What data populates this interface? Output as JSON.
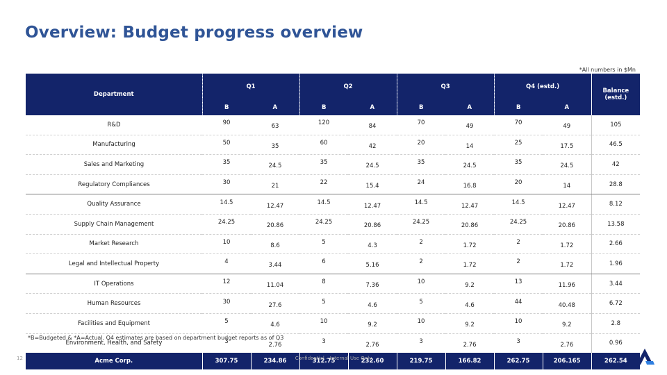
{
  "title": "Overview: Budget progress overview",
  "units_note": "*All numbers in $Mn",
  "table": {
    "dept_header": "Department",
    "quarters": [
      "Q1",
      "Q2",
      "Q3",
      "Q4 (estd.)"
    ],
    "balance_header_line1": "Balance",
    "balance_header_line2": "(estd.)",
    "sub_b": "B",
    "sub_a": "A",
    "rows": [
      {
        "dept": "R&D",
        "v": [
          "90",
          "63",
          "120",
          "84",
          "70",
          "49",
          "70",
          "49",
          "105"
        ]
      },
      {
        "dept": "Manufacturing",
        "v": [
          "50",
          "35",
          "60",
          "42",
          "20",
          "14",
          "25",
          "17.5",
          "46.5"
        ]
      },
      {
        "dept": "Sales and Marketing",
        "v": [
          "35",
          "24.5",
          "35",
          "24.5",
          "35",
          "24.5",
          "35",
          "24.5",
          "42"
        ]
      },
      {
        "dept": "Regulatory Compliances",
        "v": [
          "30",
          "21",
          "22",
          "15.4",
          "24",
          "16.8",
          "20",
          "14",
          "28.8"
        ]
      },
      {
        "dept": "Quality Assurance",
        "v": [
          "14.5",
          "12.47",
          "14.5",
          "12.47",
          "14.5",
          "12.47",
          "14.5",
          "12.47",
          "8.12"
        ]
      },
      {
        "dept": "Supply Chain Management",
        "v": [
          "24.25",
          "20.86",
          "24.25",
          "20.86",
          "24.25",
          "20.86",
          "24.25",
          "20.86",
          "13.58"
        ]
      },
      {
        "dept": "Market Research",
        "v": [
          "10",
          "8.6",
          "5",
          "4.3",
          "2",
          "1.72",
          "2",
          "1.72",
          "2.66"
        ]
      },
      {
        "dept": "Legal and Intellectual Property",
        "v": [
          "4",
          "3.44",
          "6",
          "5.16",
          "2",
          "1.72",
          "2",
          "1.72",
          "1.96"
        ]
      },
      {
        "dept": "IT Operations",
        "v": [
          "12",
          "11.04",
          "8",
          "7.36",
          "10",
          "9.2",
          "13",
          "11.96",
          "3.44"
        ]
      },
      {
        "dept": "Human Resources",
        "v": [
          "30",
          "27.6",
          "5",
          "4.6",
          "5",
          "4.6",
          "44",
          "40.48",
          "6.72"
        ]
      },
      {
        "dept": "Facilities and Equipment",
        "v": [
          "5",
          "4.6",
          "10",
          "9.2",
          "10",
          "9.2",
          "10",
          "9.2",
          "2.8"
        ]
      },
      {
        "dept": "Environment, Health, and Safety",
        "v": [
          "3",
          "2.76",
          "3",
          "2.76",
          "3",
          "2.76",
          "3",
          "2.76",
          "0.96"
        ]
      }
    ],
    "total": {
      "dept": "Acme Corp.",
      "v": [
        "307.75",
        "234.86",
        "312.75",
        "232.60",
        "219.75",
        "166.82",
        "262.75",
        "206.165",
        "262.54"
      ]
    }
  },
  "footnote": "*B=Budgeted & *A=Actual. Q4 estimates are based on department budget reports as of Q3",
  "page_number": "12",
  "confidentiality": "Confidential – Internal Use Only",
  "logo_icon": "brand-logo-icon",
  "colors": {
    "title": "#2f5496",
    "header_bg": "#13246a",
    "logo": "#13246a",
    "logo_accent": "#2f7fe0"
  }
}
